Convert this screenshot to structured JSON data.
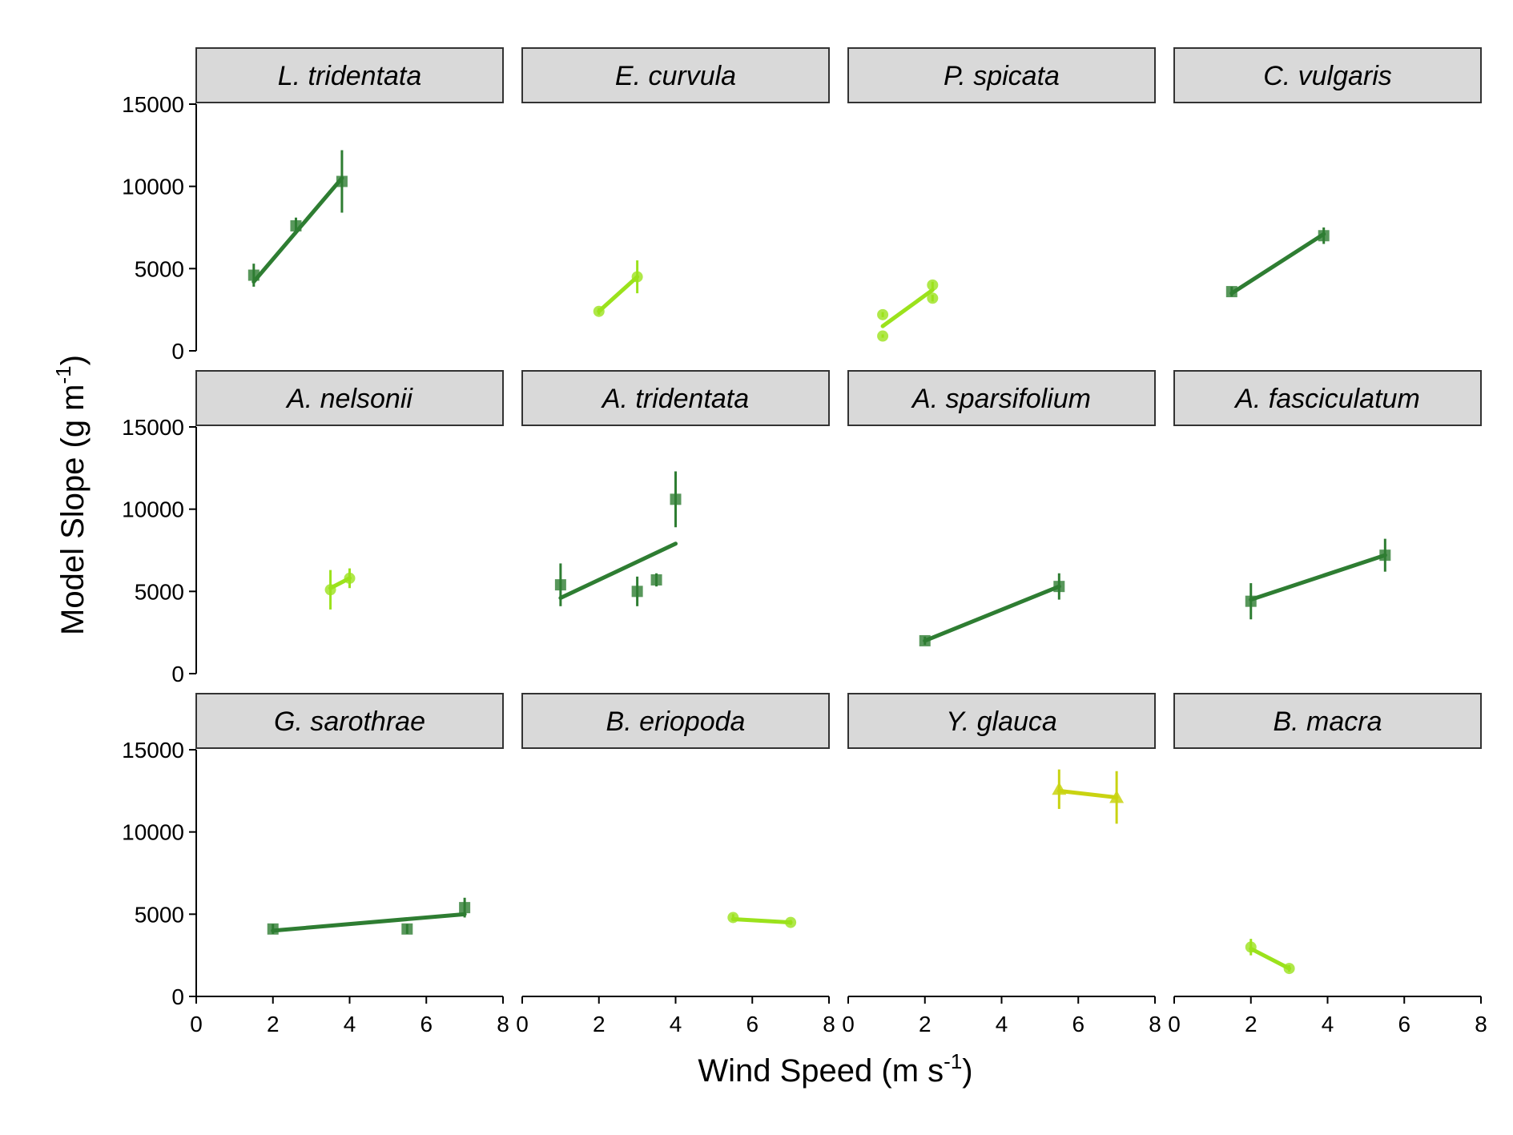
{
  "chart_data": {
    "type": "scatter",
    "layout": "facet-grid 3 rows x 4 columns, shared axes",
    "xlabel": "Wind Speed (m s-1)",
    "xlabel_parts": {
      "base": "Wind Speed (m s",
      "sup": "-1",
      "end": ")"
    },
    "ylabel": "Model Slope (g m-1)",
    "ylabel_parts": {
      "base": "Model Slope (g m",
      "sup": "-1",
      "end": ")"
    },
    "xlim": [
      0,
      8
    ],
    "ylim": [
      0,
      15000
    ],
    "x_ticks": [
      "0",
      "2",
      "4",
      "6",
      "8"
    ],
    "y_ticks": [
      "0",
      "5000",
      "10000",
      "15000"
    ],
    "grid": false,
    "legend": "none",
    "colors": {
      "shrub": "#2e7d32",
      "grass": "#9be21c",
      "yucca": "#c9d311",
      "strip_fill": "#d9d9d9",
      "strip_border": "#333333"
    },
    "panels": [
      {
        "species": "L. tridentata",
        "group": "shrub",
        "marker": "square",
        "points": [
          {
            "x": 1.5,
            "y": 4600,
            "err": 700
          },
          {
            "x": 2.6,
            "y": 7600,
            "err": 500
          },
          {
            "x": 3.8,
            "y": 10300,
            "err": 1900
          }
        ],
        "fit": [
          [
            1.5,
            4200
          ],
          [
            3.8,
            10500
          ]
        ]
      },
      {
        "species": "E. curvula",
        "group": "grass",
        "marker": "circle",
        "points": [
          {
            "x": 2.0,
            "y": 2400,
            "err": 200
          },
          {
            "x": 3.0,
            "y": 4500,
            "err": 1000
          }
        ],
        "fit": [
          [
            2.0,
            2400
          ],
          [
            3.0,
            4500
          ]
        ]
      },
      {
        "species": "P. spicata",
        "group": "grass",
        "marker": "circle",
        "points": [
          {
            "x": 0.9,
            "y": 2200,
            "err": 150
          },
          {
            "x": 0.9,
            "y": 900,
            "err": 100
          },
          {
            "x": 2.2,
            "y": 4000,
            "err": 200
          },
          {
            "x": 2.2,
            "y": 3200,
            "err": 200
          }
        ],
        "fit": [
          [
            0.9,
            1500
          ],
          [
            2.2,
            3700
          ]
        ]
      },
      {
        "species": "C. vulgaris",
        "group": "shrub",
        "marker": "square",
        "points": [
          {
            "x": 1.5,
            "y": 3600,
            "err": 300
          },
          {
            "x": 3.9,
            "y": 7000,
            "err": 500
          }
        ],
        "fit": [
          [
            1.5,
            3500
          ],
          [
            3.9,
            7100
          ]
        ]
      },
      {
        "species": "A. nelsonii",
        "group": "grass",
        "marker": "circle",
        "points": [
          {
            "x": 3.5,
            "y": 5100,
            "err": 1200
          },
          {
            "x": 4.0,
            "y": 5800,
            "err": 600
          }
        ],
        "fit": [
          [
            3.5,
            5200
          ],
          [
            4.0,
            5800
          ]
        ]
      },
      {
        "species": "A. tridentata",
        "group": "shrub",
        "marker": "square",
        "points": [
          {
            "x": 1.0,
            "y": 5400,
            "err": 1300
          },
          {
            "x": 3.0,
            "y": 5000,
            "err": 900
          },
          {
            "x": 3.5,
            "y": 5700,
            "err": 400
          },
          {
            "x": 4.0,
            "y": 10600,
            "err": 1700
          }
        ],
        "fit": [
          [
            1.0,
            4600
          ],
          [
            4.0,
            7900
          ]
        ]
      },
      {
        "species": "A. sparsifolium",
        "group": "shrub",
        "marker": "square",
        "points": [
          {
            "x": 2.0,
            "y": 2000,
            "err": 250
          },
          {
            "x": 5.5,
            "y": 5300,
            "err": 800
          }
        ],
        "fit": [
          [
            2.0,
            2000
          ],
          [
            5.5,
            5300
          ]
        ]
      },
      {
        "species": "A. fasciculatum",
        "group": "shrub",
        "marker": "square",
        "points": [
          {
            "x": 2.0,
            "y": 4400,
            "err": 1100
          },
          {
            "x": 5.5,
            "y": 7200,
            "err": 1000
          }
        ],
        "fit": [
          [
            2.0,
            4500
          ],
          [
            5.5,
            7200
          ]
        ]
      },
      {
        "species": "G. sarothrae",
        "group": "shrub",
        "marker": "square",
        "points": [
          {
            "x": 2.0,
            "y": 4100,
            "err": 300
          },
          {
            "x": 5.5,
            "y": 4100,
            "err": 300
          },
          {
            "x": 7.0,
            "y": 5400,
            "err": 600
          }
        ],
        "fit": [
          [
            2.0,
            4000
          ],
          [
            7.0,
            5000
          ]
        ]
      },
      {
        "species": "B. eriopoda",
        "group": "grass",
        "marker": "circle",
        "points": [
          {
            "x": 5.5,
            "y": 4800,
            "err": 200
          },
          {
            "x": 7.0,
            "y": 4500,
            "err": 150
          }
        ],
        "fit": [
          [
            5.5,
            4700
          ],
          [
            7.0,
            4500
          ]
        ]
      },
      {
        "species": "Y. glauca",
        "group": "yucca",
        "marker": "triangle",
        "points": [
          {
            "x": 5.5,
            "y": 12600,
            "err": 1200
          },
          {
            "x": 7.0,
            "y": 12100,
            "err": 1600
          }
        ],
        "fit": [
          [
            5.5,
            12500
          ],
          [
            7.0,
            12100
          ]
        ]
      },
      {
        "species": "B. macra",
        "group": "grass",
        "marker": "circle",
        "points": [
          {
            "x": 2.0,
            "y": 3000,
            "err": 500
          },
          {
            "x": 3.0,
            "y": 1700,
            "err": 200
          }
        ],
        "fit": [
          [
            2.0,
            2900
          ],
          [
            3.0,
            1700
          ]
        ]
      }
    ]
  }
}
